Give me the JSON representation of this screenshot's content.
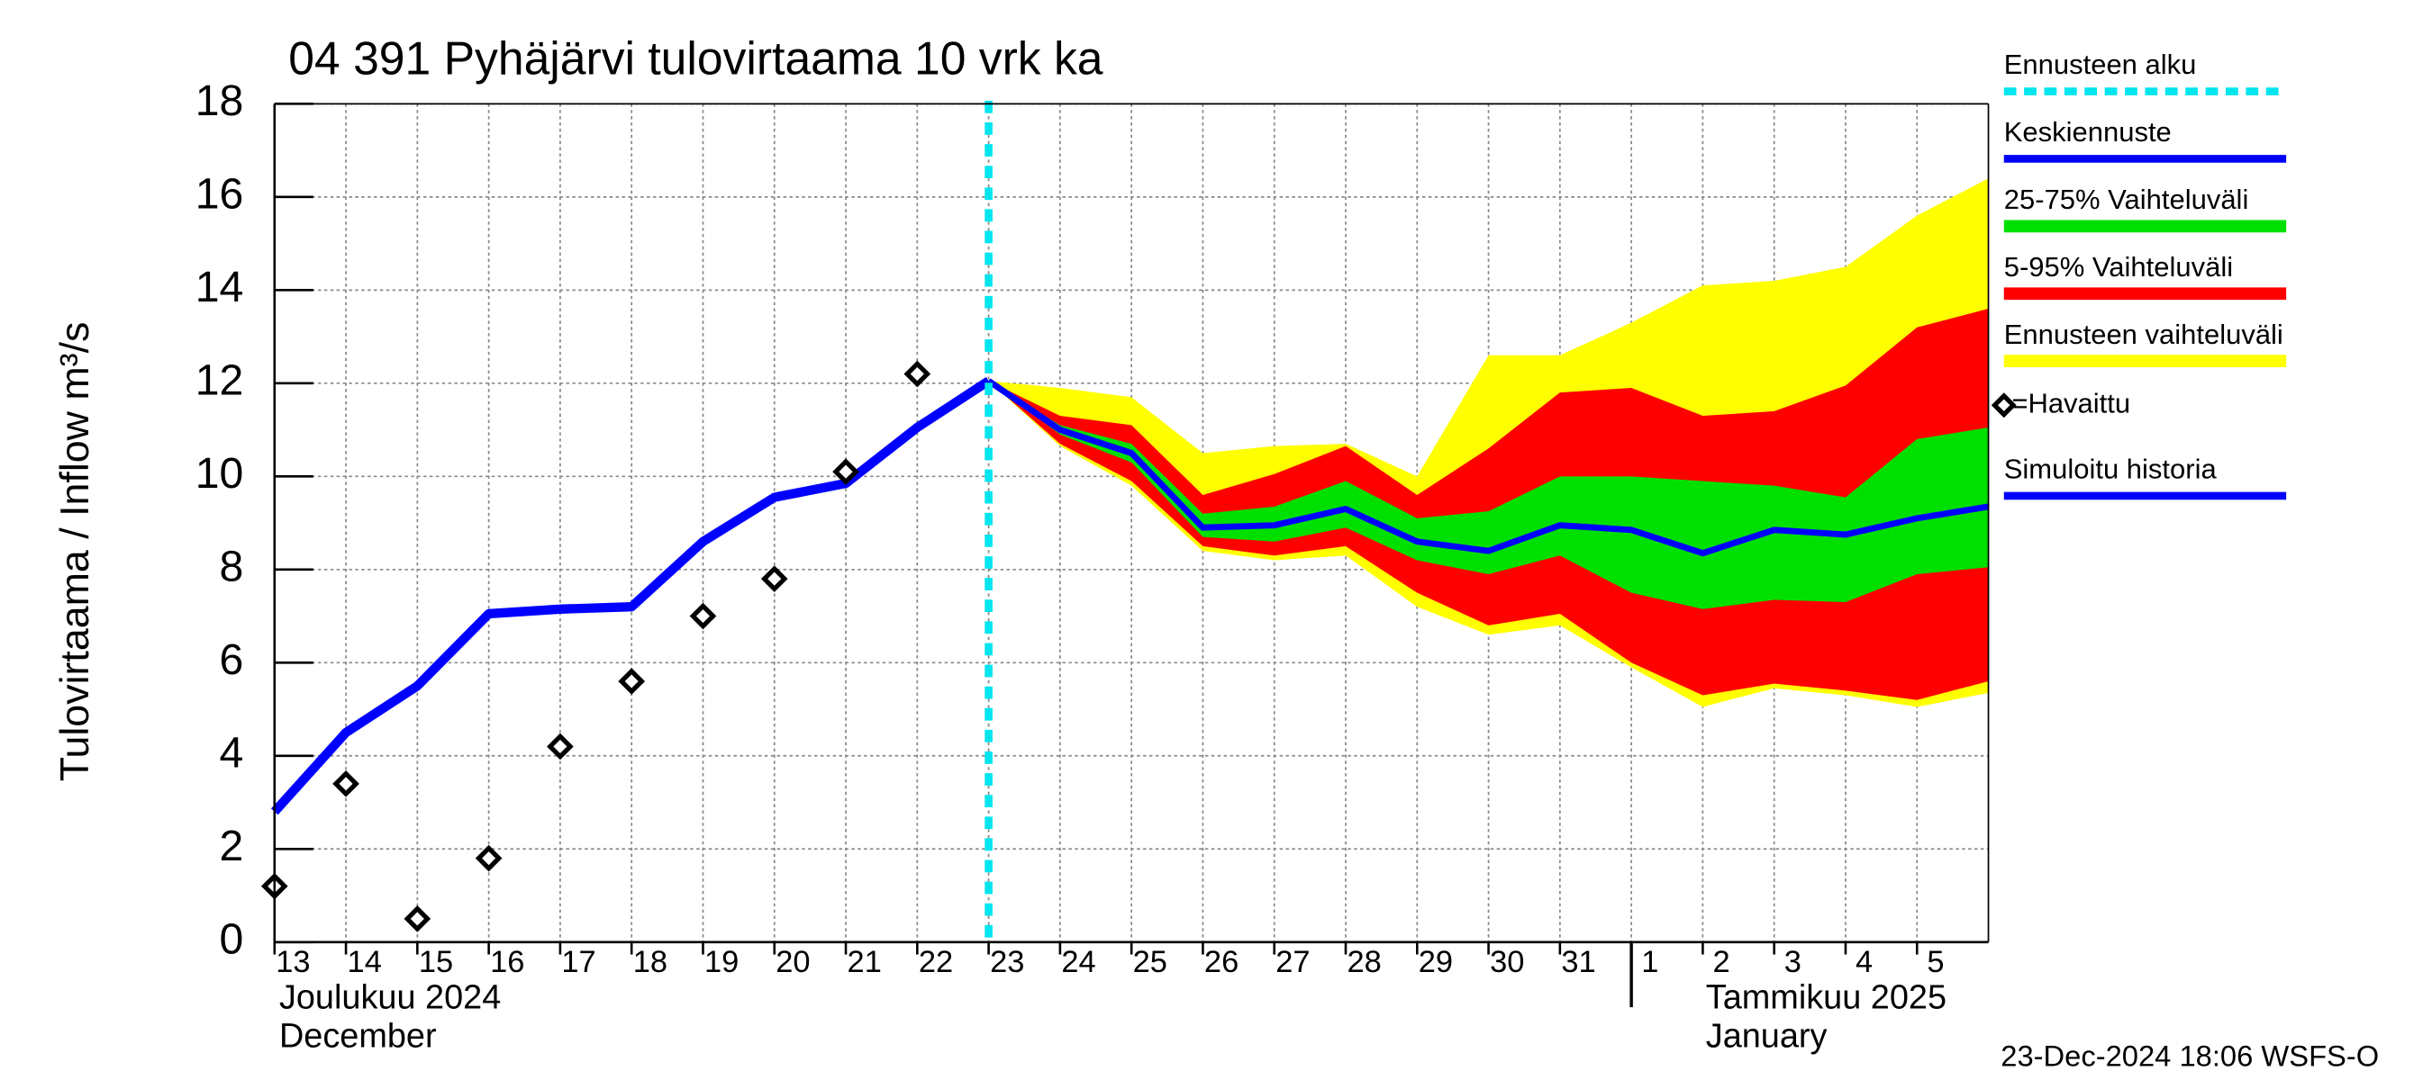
{
  "chart_data": {
    "type": "forecast",
    "title": "04 391 Pyhäjärvi tulovirtaama 10 vrk ka",
    "y_label": "Tulovirtaama / Inflow   m³/s",
    "footer": "23-Dec-2024 18:06 WSFS-O",
    "x": [
      "2024-12-13",
      "2024-12-14",
      "2024-12-15",
      "2024-12-16",
      "2024-12-17",
      "2024-12-18",
      "2024-12-19",
      "2024-12-20",
      "2024-12-21",
      "2024-12-22",
      "2024-12-23",
      "2024-12-24",
      "2024-12-25",
      "2024-12-26",
      "2024-12-27",
      "2024-12-28",
      "2024-12-29",
      "2024-12-30",
      "2024-12-31",
      "2025-01-01",
      "2025-01-02",
      "2025-01-03",
      "2025-01-04",
      "2025-01-05",
      "2025-01-06"
    ],
    "xlim": [
      "2024-12-13",
      "2025-01-06"
    ],
    "xticks": [
      {
        "value": "2024-12-13",
        "label": "13"
      },
      {
        "value": "2024-12-14",
        "label": "14"
      },
      {
        "value": "2024-12-15",
        "label": "15"
      },
      {
        "value": "2024-12-16",
        "label": "16"
      },
      {
        "value": "2024-12-17",
        "label": "17"
      },
      {
        "value": "2024-12-18",
        "label": "18"
      },
      {
        "value": "2024-12-19",
        "label": "19"
      },
      {
        "value": "2024-12-20",
        "label": "20"
      },
      {
        "value": "2024-12-21",
        "label": "21"
      },
      {
        "value": "2024-12-22",
        "label": "22"
      },
      {
        "value": "2024-12-23",
        "label": "23"
      },
      {
        "value": "2024-12-24",
        "label": "24"
      },
      {
        "value": "2024-12-25",
        "label": "25"
      },
      {
        "value": "2024-12-26",
        "label": "26"
      },
      {
        "value": "2024-12-27",
        "label": "27"
      },
      {
        "value": "2024-12-28",
        "label": "28"
      },
      {
        "value": "2024-12-29",
        "label": "29"
      },
      {
        "value": "2024-12-30",
        "label": "30"
      },
      {
        "value": "2024-12-31",
        "label": "31"
      },
      {
        "value": "2025-01-01",
        "label": "1"
      },
      {
        "value": "2025-01-02",
        "label": "2"
      },
      {
        "value": "2025-01-03",
        "label": "3"
      },
      {
        "value": "2025-01-04",
        "label": "4"
      },
      {
        "value": "2025-01-05",
        "label": "5"
      }
    ],
    "months": [
      {
        "x": "2024-12-13",
        "label": "Joulukuu  2024",
        "label_en": "December"
      },
      {
        "x": "2025-01-01",
        "label": "Tammikuu  2025",
        "label_en": "January"
      }
    ],
    "ylim": [
      0,
      18
    ],
    "yticks": [
      0,
      2,
      4,
      6,
      8,
      10,
      12,
      14,
      16,
      18
    ],
    "grid": true,
    "forecast_start": {
      "name": "Ennusteen alku",
      "x": "2024-12-23",
      "color": "#00e5ee"
    },
    "series": [
      {
        "name": "Keskiennuste",
        "kind": "line",
        "color": "#0000ff",
        "values": [
          null,
          null,
          null,
          null,
          null,
          null,
          null,
          null,
          null,
          null,
          12.05,
          11.0,
          10.5,
          8.9,
          8.95,
          9.3,
          8.6,
          8.4,
          8.95,
          8.85,
          8.35,
          8.85,
          8.75,
          9.1,
          9.35
        ]
      },
      {
        "name": "25-75% Vaihteluväli",
        "kind": "band",
        "color": "#00e000",
        "lower": [
          null,
          null,
          null,
          null,
          null,
          null,
          null,
          null,
          null,
          null,
          12.05,
          10.9,
          10.3,
          8.7,
          8.6,
          8.9,
          8.2,
          7.9,
          8.3,
          7.5,
          7.15,
          7.35,
          7.3,
          7.9,
          8.05
        ],
        "upper": [
          null,
          null,
          null,
          null,
          null,
          null,
          null,
          null,
          null,
          null,
          12.05,
          11.1,
          10.7,
          9.2,
          9.35,
          9.9,
          9.1,
          9.25,
          10.0,
          10.0,
          9.9,
          9.8,
          9.55,
          10.8,
          11.05
        ]
      },
      {
        "name": "5-95% Vaihteluväli",
        "kind": "band",
        "color": "#ff0000",
        "lower": [
          null,
          null,
          null,
          null,
          null,
          null,
          null,
          null,
          null,
          null,
          12.05,
          10.7,
          9.9,
          8.5,
          8.3,
          8.5,
          7.5,
          6.8,
          7.05,
          6.0,
          5.3,
          5.55,
          5.4,
          5.2,
          5.6
        ],
        "upper": [
          null,
          null,
          null,
          null,
          null,
          null,
          null,
          null,
          null,
          null,
          12.05,
          11.3,
          11.1,
          9.6,
          10.05,
          10.65,
          9.6,
          10.6,
          11.8,
          11.9,
          11.3,
          11.4,
          11.95,
          13.2,
          13.6
        ]
      },
      {
        "name": "Ennusteen vaihteluväli",
        "kind": "band",
        "color": "#ffff00",
        "lower": [
          null,
          null,
          null,
          null,
          null,
          null,
          null,
          null,
          null,
          null,
          12.05,
          10.65,
          9.8,
          8.4,
          8.2,
          8.3,
          7.2,
          6.6,
          6.8,
          5.9,
          5.05,
          5.45,
          5.3,
          5.05,
          5.35
        ],
        "upper": [
          null,
          null,
          null,
          null,
          null,
          null,
          null,
          null,
          null,
          null,
          12.05,
          11.9,
          11.7,
          10.5,
          10.65,
          10.7,
          10.0,
          12.6,
          12.6,
          13.3,
          14.1,
          14.2,
          14.5,
          15.6,
          16.4
        ]
      },
      {
        "name": "=Havaittu",
        "kind": "marker",
        "color": "#000000",
        "values": [
          1.2,
          3.4,
          0.5,
          1.8,
          4.2,
          5.6,
          7.0,
          7.8,
          10.1,
          12.2,
          null,
          null,
          null,
          null,
          null,
          null,
          null,
          null,
          null,
          null,
          null,
          null,
          null,
          null,
          null
        ]
      },
      {
        "name": "Simuloitu historia",
        "kind": "line",
        "color": "#0000ff",
        "values": [
          2.8,
          4.5,
          5.5,
          7.05,
          7.15,
          7.2,
          8.6,
          9.55,
          9.85,
          11.05,
          12.05,
          null,
          null,
          null,
          null,
          null,
          null,
          null,
          null,
          null,
          null,
          null,
          null,
          null,
          null
        ]
      }
    ]
  }
}
